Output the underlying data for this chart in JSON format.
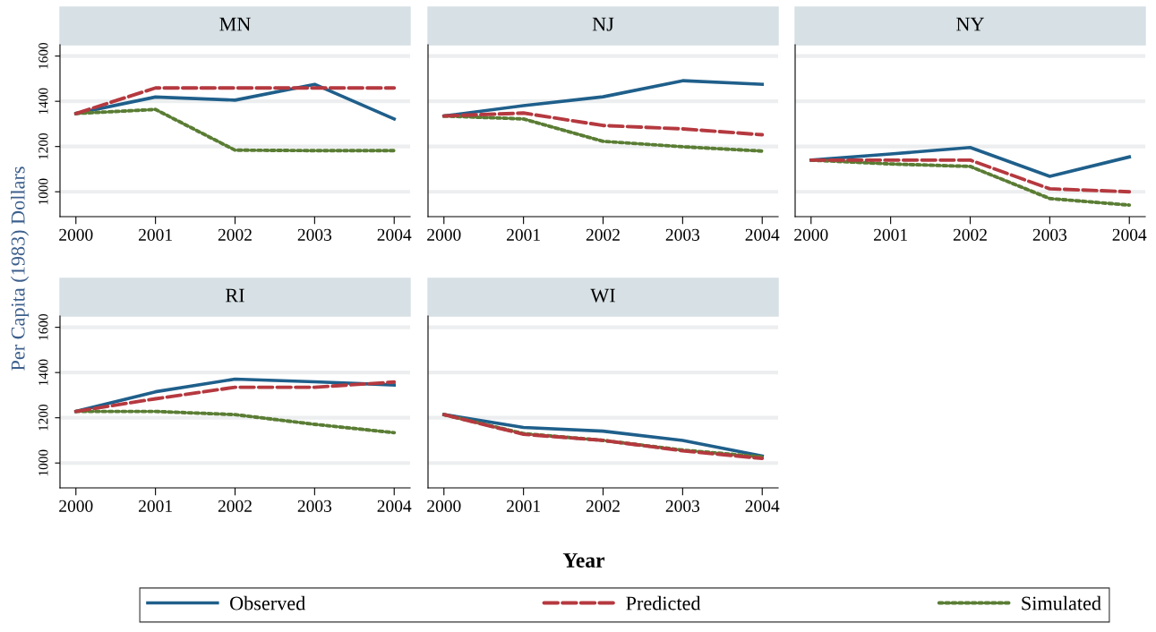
{
  "chart_data": [
    {
      "type": "line",
      "title": "MN",
      "ylabel": "Per Capita (1983) Dollars",
      "x": [
        2000,
        2001,
        2002,
        2003,
        2004
      ],
      "xlim": [
        1999.8,
        2004.2
      ],
      "xticks": [
        2000,
        2001,
        2002,
        2003,
        2004
      ],
      "ylim": [
        890,
        1650
      ],
      "yticks": [
        1000,
        1200,
        1400,
        1600
      ],
      "grid": "y",
      "legend": "bottom",
      "marker": "none",
      "series": [
        {
          "name": "Observed",
          "color": "#1f5f8b",
          "line_style": "solid",
          "values": [
            1346,
            1419,
            1405,
            1475,
            1322
          ]
        },
        {
          "name": "Predicted",
          "color": "#b5393f",
          "line_style": "dashed",
          "values": [
            1346,
            1459,
            1459,
            1459,
            1459
          ]
        },
        {
          "name": "Simulated",
          "color": "#5a7d34",
          "line_style": "dotted",
          "values": [
            1346,
            1364,
            1184,
            1182,
            1182
          ]
        }
      ]
    },
    {
      "type": "line",
      "title": "NJ",
      "x": [
        2000,
        2001,
        2002,
        2003,
        2004
      ],
      "xlim": [
        1999.8,
        2004.2
      ],
      "xticks": [
        2000,
        2001,
        2002,
        2003,
        2004
      ],
      "ylim": [
        890,
        1650
      ],
      "yticks": [
        1000,
        1200,
        1400,
        1600
      ],
      "grid": "y",
      "tick_labels": "x",
      "marker": "none",
      "series": [
        {
          "color": "#1f5f8b",
          "line_style": "solid",
          "values": [
            1335,
            1381,
            1420,
            1491,
            1475
          ]
        },
        {
          "color": "#b5393f",
          "line_style": "dashed",
          "values": [
            1335,
            1348,
            1293,
            1278,
            1252
          ]
        },
        {
          "color": "#5a7d34",
          "line_style": "dotted",
          "values": [
            1335,
            1322,
            1223,
            1199,
            1180
          ]
        }
      ]
    },
    {
      "type": "line",
      "title": "NY",
      "x": [
        2000,
        2001,
        2002,
        2003,
        2004
      ],
      "xlim": [
        1999.8,
        2004.2
      ],
      "xticks": [
        2000,
        2001,
        2002,
        2003,
        2004
      ],
      "ylim": [
        890,
        1650
      ],
      "yticks": [
        1000,
        1200,
        1400,
        1600
      ],
      "grid": "y",
      "tick_labels": "x",
      "marker": "none",
      "series": [
        {
          "color": "#1f5f8b",
          "line_style": "solid",
          "values": [
            1140,
            1167,
            1196,
            1068,
            1154
          ]
        },
        {
          "color": "#b5393f",
          "line_style": "dashed",
          "values": [
            1140,
            1140,
            1140,
            1013,
            1000
          ]
        },
        {
          "color": "#5a7d34",
          "line_style": "dotted",
          "values": [
            1140,
            1123,
            1112,
            970,
            941
          ]
        }
      ]
    },
    {
      "type": "line",
      "title": "RI",
      "x": [
        2000,
        2001,
        2002,
        2003,
        2004
      ],
      "xlim": [
        1999.8,
        2004.2
      ],
      "xticks": [
        2000,
        2001,
        2002,
        2003,
        2004
      ],
      "ylim": [
        890,
        1650
      ],
      "yticks": [
        1000,
        1200,
        1400,
        1600
      ],
      "grid": "y",
      "marker": "none",
      "series": [
        {
          "color": "#1f5f8b",
          "line_style": "solid",
          "values": [
            1228,
            1315,
            1371,
            1359,
            1345
          ]
        },
        {
          "color": "#b5393f",
          "line_style": "dashed",
          "values": [
            1228,
            1284,
            1335,
            1335,
            1358
          ]
        },
        {
          "color": "#5a7d34",
          "line_style": "dotted",
          "values": [
            1228,
            1228,
            1214,
            1171,
            1134
          ]
        }
      ]
    },
    {
      "type": "line",
      "title": "WI",
      "xlabel": "Year",
      "x": [
        2000,
        2001,
        2002,
        2003,
        2004
      ],
      "xlim": [
        1999.8,
        2004.2
      ],
      "xticks": [
        2000,
        2001,
        2002,
        2003,
        2004
      ],
      "ylim": [
        890,
        1650
      ],
      "yticks": [
        1000,
        1200,
        1400,
        1600
      ],
      "grid": "y",
      "tick_labels": "x",
      "marker": "none",
      "series": [
        {
          "color": "#1f5f8b",
          "line_style": "solid",
          "values": [
            1214,
            1157,
            1141,
            1100,
            1031
          ]
        },
        {
          "color": "#b5393f",
          "line_style": "dashed",
          "values": [
            1214,
            1127,
            1100,
            1054,
            1020
          ]
        },
        {
          "color": "#5a7d34",
          "line_style": "dotted",
          "values": [
            1214,
            1130,
            1100,
            1057,
            1027
          ]
        }
      ]
    }
  ]
}
